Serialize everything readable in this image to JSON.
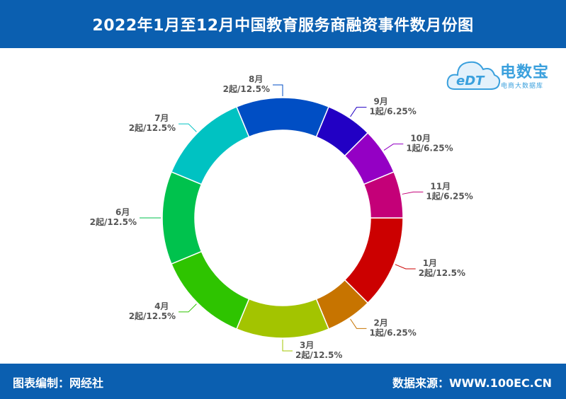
{
  "header": {
    "title": "2022年1月至12月中国教育服务商融资事件数月份图"
  },
  "logo": {
    "name": "电数宝",
    "mark": "eDT",
    "subtitle": "电商大数据库"
  },
  "footer": {
    "left_text": "图表编制：网经社",
    "right_text": "数据来源：WWW.100EC.CN"
  },
  "chart_data": {
    "type": "pie",
    "donut": true,
    "title": "2022年1月至12月中国教育服务商融资事件数月份图",
    "slices": [
      {
        "label": "1月",
        "value": 2,
        "text": "2起/12.5%",
        "color": "#cc0000"
      },
      {
        "label": "2月",
        "value": 1,
        "text": "1起/6.25%",
        "color": "#c77400"
      },
      {
        "label": "3月",
        "value": 2,
        "text": "2起/12.5%",
        "color": "#a3c400"
      },
      {
        "label": "4月",
        "value": 2,
        "text": "2起/12.5%",
        "color": "#2ec400"
      },
      {
        "label": "6月",
        "value": 2,
        "text": "2起/12.5%",
        "color": "#00c24d"
      },
      {
        "label": "7月",
        "value": 2,
        "text": "2起/12.5%",
        "color": "#00c2c2"
      },
      {
        "label": "8月",
        "value": 2,
        "text": "2起/12.5%",
        "color": "#004ec4"
      },
      {
        "label": "9月",
        "value": 1,
        "text": "1起/6.25%",
        "color": "#2200c4"
      },
      {
        "label": "10月",
        "value": 1,
        "text": "1起/6.25%",
        "color": "#9400c4"
      },
      {
        "label": "11月",
        "value": 1,
        "text": "1起/6.25%",
        "color": "#c40078"
      }
    ]
  }
}
